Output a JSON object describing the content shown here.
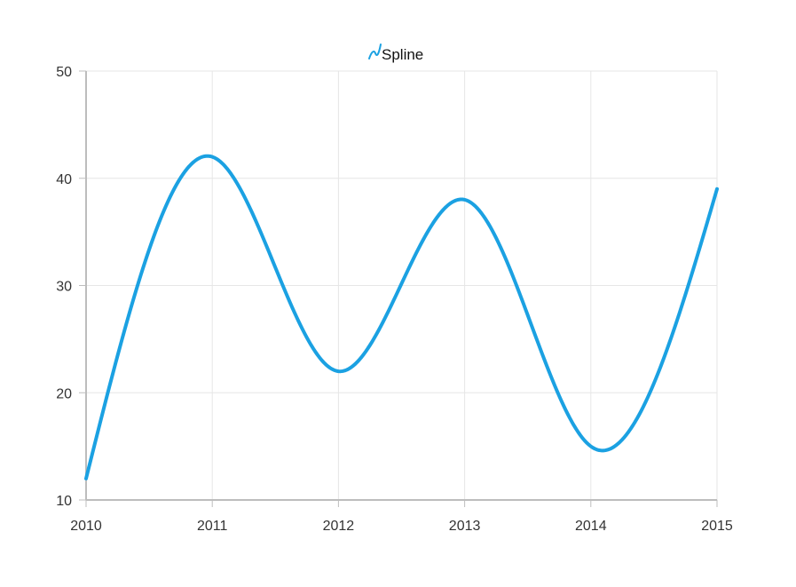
{
  "chart_data": {
    "type": "line",
    "smooth": true,
    "title": "",
    "xlabel": "",
    "ylabel": "",
    "x": [
      2010,
      2011,
      2012,
      2013,
      2014,
      2015
    ],
    "series": [
      {
        "name": "Spline",
        "color": "#1ba1e2",
        "x": [
          2010,
          2011,
          2012,
          2013,
          2014,
          2015
        ],
        "y": [
          12,
          42,
          22,
          38,
          15,
          39
        ]
      }
    ],
    "xlim": [
      2010,
      2015
    ],
    "ylim": [
      10,
      50
    ],
    "x_ticks": [
      "2010",
      "2011",
      "2012",
      "2013",
      "2014",
      "2015"
    ],
    "y_ticks": [
      "10",
      "20",
      "30",
      "40",
      "50"
    ],
    "grid": true,
    "legend": {
      "position": "top-center",
      "icon": "spline-series-icon",
      "label": "Spline"
    },
    "colors": {
      "series": "#1ba1e2",
      "grid": "#e6e6e6",
      "axis": "#bdbdbd"
    }
  }
}
